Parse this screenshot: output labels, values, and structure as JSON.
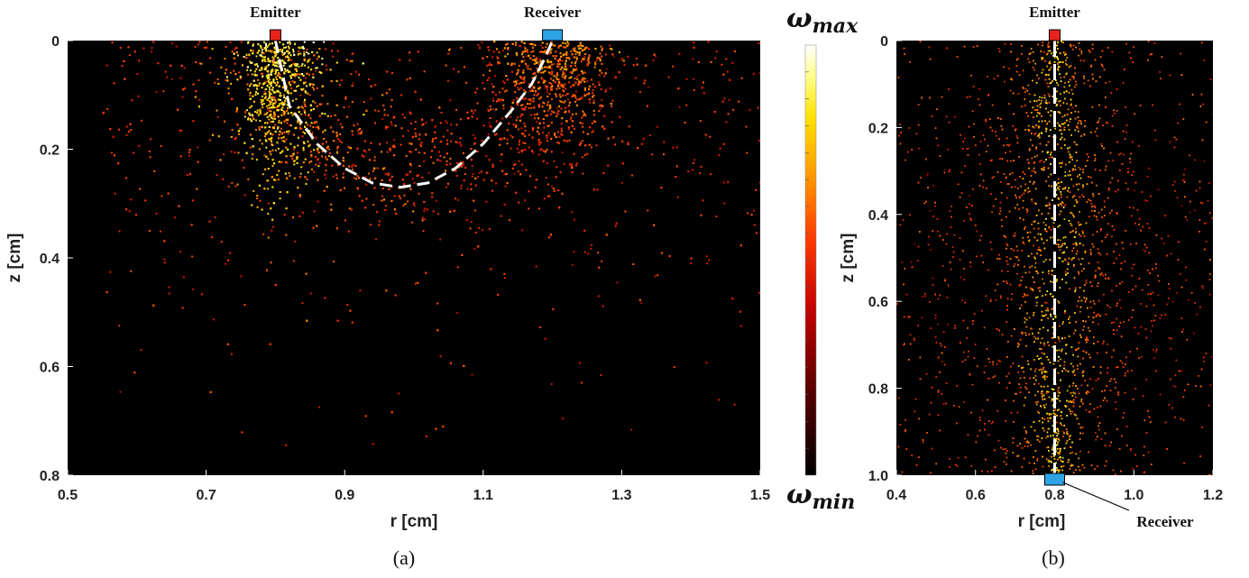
{
  "chart_data": [
    {
      "type": "heatmap",
      "panel": "(a)",
      "xlabel": "r [cm]",
      "ylabel": "z [cm]",
      "xlim": [
        0.5,
        1.5
      ],
      "ylim": [
        0.8,
        0
      ],
      "xticks": [
        "0.5",
        "0.7",
        "0.9",
        "1.1",
        "1.3",
        "1.5"
      ],
      "yticks": [
        "0",
        "0.2",
        "0.4",
        "0.6",
        "0.8"
      ],
      "emitter": {
        "label": "Emitter",
        "r": 0.8,
        "z": 0,
        "color": "#e8231b"
      },
      "receiver": {
        "label": "Receiver",
        "r": 1.2,
        "z": 0,
        "color": "#2ea3e6"
      },
      "mean_path": {
        "style": "dashed",
        "color": "#ffffff",
        "r": [
          0.8,
          0.82,
          0.86,
          0.9,
          0.94,
          0.98,
          1.02,
          1.06,
          1.1,
          1.14,
          1.17,
          1.19,
          1.2
        ],
        "z": [
          0.0,
          0.12,
          0.19,
          0.235,
          0.262,
          0.27,
          0.262,
          0.235,
          0.19,
          0.13,
          0.08,
          0.03,
          0.0
        ]
      }
    },
    {
      "type": "heatmap",
      "panel": "(b)",
      "xlabel": "r [cm]",
      "ylabel": "z [cm]",
      "xlim": [
        0.4,
        1.2
      ],
      "ylim": [
        1.0,
        0
      ],
      "xticks": [
        "0.4",
        "0.6",
        "0.8",
        "1.0",
        "1.2"
      ],
      "yticks": [
        "0",
        "0.2",
        "0.4",
        "0.6",
        "0.8",
        "1.0"
      ],
      "emitter": {
        "label": "Emitter",
        "r": 0.8,
        "z": 0,
        "color": "#e8231b"
      },
      "receiver": {
        "label": "Receiver",
        "r": 0.8,
        "z": 1.0,
        "color": "#2ea3e6"
      },
      "mean_path": {
        "style": "dashed",
        "color": "#ffffff",
        "r": [
          0.8,
          0.8
        ],
        "z": [
          0.0,
          1.0
        ]
      }
    }
  ],
  "colorbar": {
    "max_label": "ω",
    "max_sub": "max",
    "min_label": "ω",
    "min_sub": "min",
    "colors": [
      "#000000",
      "#5a0000",
      "#b00000",
      "#ff2a00",
      "#ff8c00",
      "#ffd400",
      "#ffff80",
      "#ffffff"
    ]
  }
}
